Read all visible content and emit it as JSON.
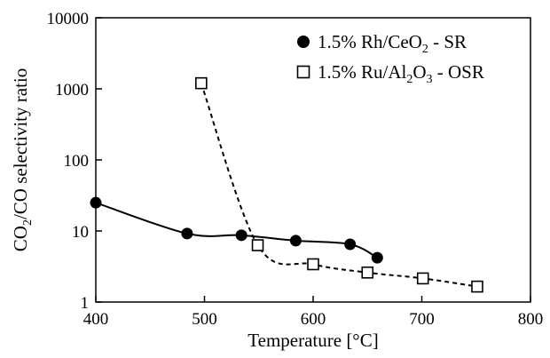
{
  "chart_data": {
    "type": "line",
    "title": "",
    "xlabel": "Temperature [°C]",
    "ylabel": {
      "part1": "CO",
      "sub1": "2",
      "part2": "/CO selectivity ratio"
    },
    "x_scale": "linear",
    "y_scale": "log",
    "xlim": [
      400,
      800
    ],
    "ylim": [
      1,
      10000
    ],
    "x_ticks": [
      400,
      500,
      600,
      700,
      800
    ],
    "y_ticks": [
      1,
      10,
      100,
      1000,
      10000
    ],
    "x_tick_labels": [
      "400",
      "500",
      "600",
      "700",
      "800"
    ],
    "y_tick_labels": [
      "1",
      "10",
      "100",
      "1000",
      "10000"
    ],
    "grid": false,
    "legend_position": "top-right",
    "series": [
      {
        "name": "1.5% Rh/CeO2 - SR",
        "legend": {
          "a": "1.5% Rh/CeO",
          "sub": "2",
          "b": " - SR"
        },
        "marker": "filled-circle",
        "line_style": "solid",
        "color": "#000000",
        "points": [
          {
            "x": 400,
            "y": 25
          },
          {
            "x": 484,
            "y": 9.2
          },
          {
            "x": 534,
            "y": 8.7
          },
          {
            "x": 584,
            "y": 7.3
          },
          {
            "x": 634,
            "y": 6.5
          },
          {
            "x": 659,
            "y": 4.2
          }
        ]
      },
      {
        "name": "1.5% Ru/Al2O3 - OSR",
        "legend": {
          "a": "1.5% Ru/Al",
          "sub1": "2",
          "b": "O",
          "sub2": "3",
          "c": " - OSR"
        },
        "marker": "open-square",
        "line_style": "dashed",
        "color": "#000000",
        "points": [
          {
            "x": 497,
            "y": 1200
          },
          {
            "x": 549,
            "y": 6.3
          },
          {
            "x": 600,
            "y": 3.4
          },
          {
            "x": 650,
            "y": 2.6
          },
          {
            "x": 701,
            "y": 2.15
          },
          {
            "x": 751,
            "y": 1.65
          }
        ]
      }
    ]
  }
}
